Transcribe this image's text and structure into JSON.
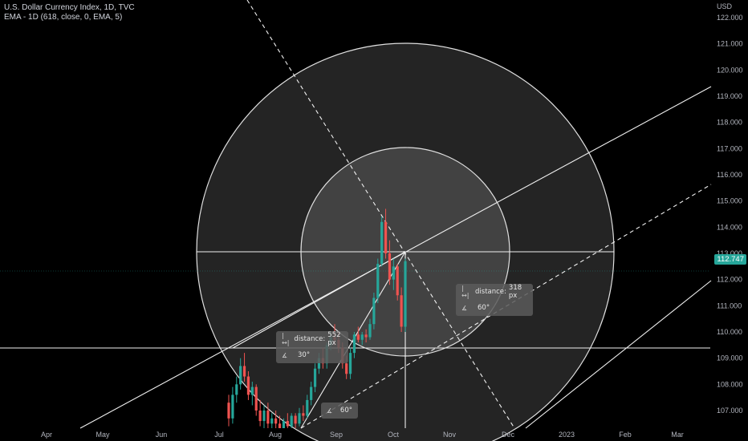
{
  "chart_data": {
    "type": "candlestick",
    "title": "U.S. Dollar Currency Index, 1D, TVC",
    "indicator": "EMA - 1D (618, close, 0, EMA, 5)",
    "currency": "USD",
    "ylim": [
      106.2,
      124.0
    ],
    "y_ticks": [
      "122.000",
      "121.000",
      "120.000",
      "119.000",
      "118.000",
      "117.000",
      "116.000",
      "115.000",
      "114.000",
      "113.000",
      "112.000",
      "111.000",
      "110.000",
      "109.000",
      "108.000",
      "107.000"
    ],
    "x_ticks": [
      "Apr",
      "May",
      "Jun",
      "Jul",
      "Aug",
      "Sep",
      "Oct",
      "Nov",
      "Dec",
      "2023",
      "Feb",
      "Mar"
    ],
    "last_price": "112.747",
    "candles": [
      {
        "o": 107.3,
        "h": 107.6,
        "l": 106.4,
        "c": 106.7
      },
      {
        "o": 106.7,
        "h": 107.9,
        "l": 106.5,
        "c": 107.6
      },
      {
        "o": 107.6,
        "h": 108.3,
        "l": 107.3,
        "c": 108.0
      },
      {
        "o": 108.0,
        "h": 109.0,
        "l": 107.8,
        "c": 108.7
      },
      {
        "o": 108.7,
        "h": 109.2,
        "l": 108.1,
        "c": 108.3
      },
      {
        "o": 108.3,
        "h": 108.5,
        "l": 107.4,
        "c": 107.6
      },
      {
        "o": 107.6,
        "h": 108.1,
        "l": 107.2,
        "c": 107.9
      },
      {
        "o": 107.9,
        "h": 108.0,
        "l": 106.8,
        "c": 107.0
      },
      {
        "o": 107.0,
        "h": 107.4,
        "l": 106.4,
        "c": 106.6
      },
      {
        "o": 106.6,
        "h": 107.2,
        "l": 106.3,
        "c": 107.0
      },
      {
        "o": 107.0,
        "h": 107.3,
        "l": 106.3,
        "c": 106.5
      },
      {
        "o": 106.5,
        "h": 106.9,
        "l": 106.2,
        "c": 106.7
      },
      {
        "o": 106.7,
        "h": 107.0,
        "l": 106.3,
        "c": 106.5
      },
      {
        "o": 106.5,
        "h": 106.8,
        "l": 106.2,
        "c": 106.3
      },
      {
        "o": 106.3,
        "h": 106.7,
        "l": 106.2,
        "c": 106.6
      },
      {
        "o": 106.6,
        "h": 106.9,
        "l": 106.3,
        "c": 106.4
      },
      {
        "o": 106.4,
        "h": 106.9,
        "l": 106.2,
        "c": 106.8
      },
      {
        "o": 106.8,
        "h": 106.9,
        "l": 106.3,
        "c": 106.5
      },
      {
        "o": 106.5,
        "h": 107.1,
        "l": 106.4,
        "c": 106.9
      },
      {
        "o": 106.9,
        "h": 107.2,
        "l": 106.6,
        "c": 106.8
      },
      {
        "o": 106.8,
        "h": 107.6,
        "l": 106.7,
        "c": 107.4
      },
      {
        "o": 107.4,
        "h": 108.1,
        "l": 107.2,
        "c": 107.9
      },
      {
        "o": 107.9,
        "h": 108.8,
        "l": 107.7,
        "c": 108.6
      },
      {
        "o": 108.6,
        "h": 109.2,
        "l": 108.4,
        "c": 109.0
      },
      {
        "o": 109.0,
        "h": 109.4,
        "l": 108.6,
        "c": 108.8
      },
      {
        "o": 108.8,
        "h": 109.6,
        "l": 108.6,
        "c": 109.5
      },
      {
        "o": 109.5,
        "h": 110.0,
        "l": 109.3,
        "c": 109.8
      },
      {
        "o": 109.8,
        "h": 110.3,
        "l": 109.5,
        "c": 109.7
      },
      {
        "o": 109.7,
        "h": 110.0,
        "l": 109.2,
        "c": 109.4
      },
      {
        "o": 109.4,
        "h": 109.6,
        "l": 108.6,
        "c": 108.8
      },
      {
        "o": 108.8,
        "h": 109.1,
        "l": 108.2,
        "c": 108.4
      },
      {
        "o": 108.4,
        "h": 109.4,
        "l": 108.2,
        "c": 109.2
      },
      {
        "o": 109.2,
        "h": 110.0,
        "l": 109.0,
        "c": 109.9
      },
      {
        "o": 109.9,
        "h": 110.2,
        "l": 109.6,
        "c": 109.7
      },
      {
        "o": 109.7,
        "h": 110.0,
        "l": 109.5,
        "c": 109.9
      },
      {
        "o": 109.9,
        "h": 110.1,
        "l": 109.6,
        "c": 109.8
      },
      {
        "o": 109.8,
        "h": 110.5,
        "l": 109.7,
        "c": 110.3
      },
      {
        "o": 110.3,
        "h": 111.5,
        "l": 110.1,
        "c": 111.3
      },
      {
        "o": 111.3,
        "h": 112.8,
        "l": 111.1,
        "c": 112.6
      },
      {
        "o": 112.6,
        "h": 114.4,
        "l": 112.5,
        "c": 114.2
      },
      {
        "o": 114.2,
        "h": 114.7,
        "l": 112.8,
        "c": 113.0
      },
      {
        "o": 113.0,
        "h": 113.5,
        "l": 111.8,
        "c": 112.0
      },
      {
        "o": 112.0,
        "h": 112.8,
        "l": 111.6,
        "c": 112.5
      },
      {
        "o": 112.5,
        "h": 112.6,
        "l": 111.2,
        "c": 111.4
      },
      {
        "o": 111.4,
        "h": 111.7,
        "l": 110.0,
        "c": 110.2
      },
      {
        "o": 110.2,
        "h": 112.8,
        "l": 110.0,
        "c": 112.7
      }
    ]
  },
  "drawings": {
    "tooltip_right": {
      "distance_label": "distance:",
      "distance_value": "318 px",
      "angle_value": "60°"
    },
    "tooltip_left": {
      "distance_label": "distance:",
      "distance_value": "552 px",
      "angle_value": "30°"
    },
    "tooltip_bottom": {
      "angle_value": "60°"
    }
  },
  "colors": {
    "up": "#26a69a",
    "down": "#ef5350",
    "line": "#ffffff",
    "badge": "#26a69a"
  }
}
